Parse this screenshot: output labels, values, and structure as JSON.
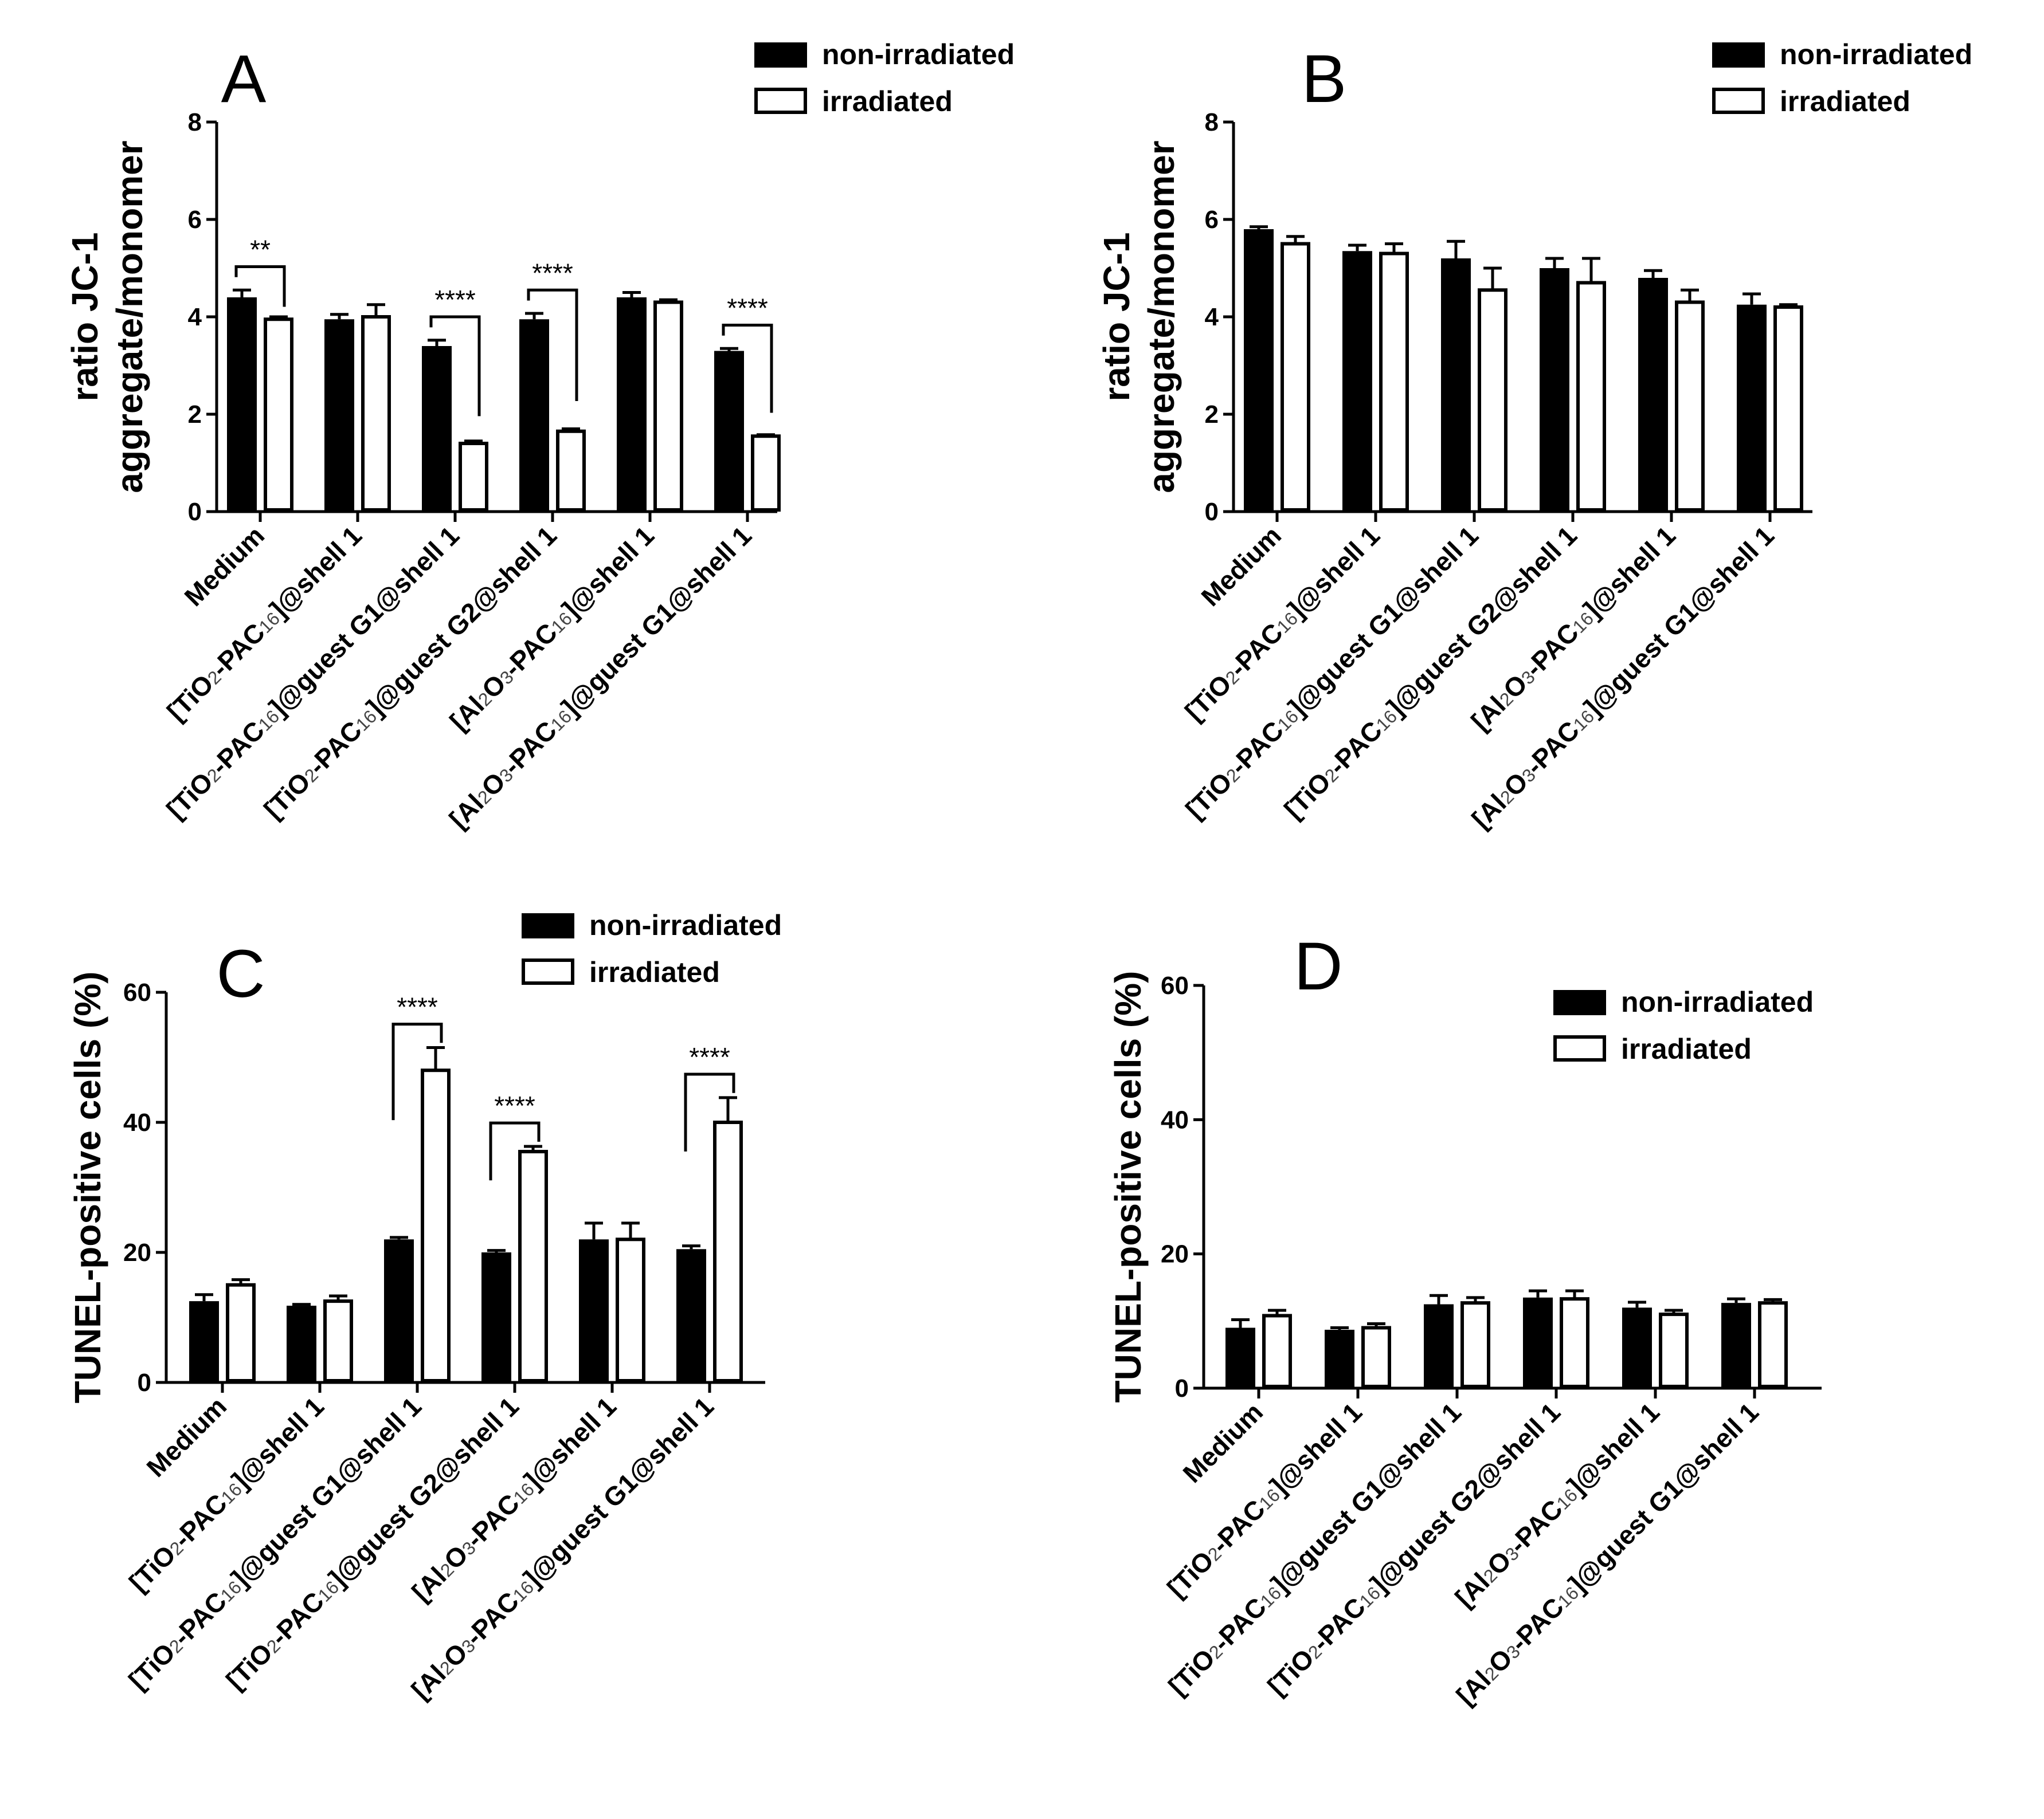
{
  "figure": {
    "legend": {
      "non_irradiated": "non-irradiated",
      "irradiated": "irradiated"
    },
    "categories": [
      {
        "pre": "Medium"
      },
      {
        "pre": "[TiO",
        "sub": "2",
        "mid": "-PAC",
        "sub2": "16",
        "post": "]@shell 1"
      },
      {
        "pre": "[TiO",
        "sub": "2",
        "mid": "-PAC",
        "sub2": "16",
        "post": "]@guest G1@shell 1"
      },
      {
        "pre": "[TiO",
        "sub": "2",
        "mid": "-PAC",
        "sub2": "16",
        "post": "]@guest G2@shell 1"
      },
      {
        "pre": "[Al",
        "sub": "2",
        "mid": "O",
        "sub3": "3",
        "mid2": "-PAC",
        "sub2": "16",
        "post": "]@shell 1"
      },
      {
        "pre": "[Al",
        "sub": "2",
        "mid": "O",
        "sub3": "3",
        "mid2": "-PAC",
        "sub2": "16",
        "post": "]@guest G1@shell 1"
      }
    ]
  },
  "chart_data": [
    {
      "panel": "A",
      "type": "bar",
      "ylabel_line1": "ratio JC-1",
      "ylabel_line2": "aggregate/monomer",
      "ylim": [
        0,
        8
      ],
      "yticks": [
        0,
        2,
        4,
        6,
        8
      ],
      "series": [
        {
          "name": "non-irradiated",
          "values": [
            4.4,
            3.95,
            3.4,
            3.95,
            4.4,
            3.3
          ],
          "errors": [
            0.15,
            0.1,
            0.12,
            0.12,
            0.1,
            0.05
          ]
        },
        {
          "name": "irradiated",
          "values": [
            3.95,
            4.0,
            1.4,
            1.65,
            4.3,
            1.55
          ],
          "errors": [
            0.05,
            0.25,
            0.05,
            0.05,
            0.05,
            0.03
          ]
        }
      ],
      "significance": [
        {
          "category": 0,
          "label": "**"
        },
        {
          "category": 2,
          "label": "****"
        },
        {
          "category": 3,
          "label": "****"
        },
        {
          "category": 5,
          "label": "****"
        }
      ]
    },
    {
      "panel": "B",
      "type": "bar",
      "ylabel_line1": "ratio JC-1",
      "ylabel_line2": "aggregate/monomer",
      "ylim": [
        0,
        8
      ],
      "yticks": [
        0,
        2,
        4,
        6,
        8
      ],
      "series": [
        {
          "name": "non-irradiated",
          "values": [
            5.8,
            5.35,
            5.2,
            5.0,
            4.8,
            4.25
          ],
          "errors": [
            0.05,
            0.12,
            0.35,
            0.2,
            0.15,
            0.22
          ]
        },
        {
          "name": "irradiated",
          "values": [
            5.5,
            5.3,
            4.55,
            4.7,
            4.3,
            4.2
          ],
          "errors": [
            0.15,
            0.2,
            0.45,
            0.5,
            0.25,
            0.05
          ]
        }
      ],
      "significance": []
    },
    {
      "panel": "C",
      "type": "bar",
      "ylabel_line1": "TUNEL-positive cells (%)",
      "ylim": [
        0,
        60
      ],
      "yticks": [
        0,
        20,
        40,
        60
      ],
      "series": [
        {
          "name": "non-irradiated",
          "values": [
            12.5,
            11.8,
            22.0,
            20.0,
            22.0,
            20.5
          ],
          "errors": [
            1.0,
            0.2,
            0.3,
            0.3,
            2.5,
            0.5
          ]
        },
        {
          "name": "irradiated",
          "values": [
            15.0,
            12.5,
            48.0,
            35.5,
            22.0,
            40.0
          ],
          "errors": [
            0.8,
            0.8,
            3.5,
            0.8,
            2.5,
            3.8
          ]
        }
      ],
      "significance": [
        {
          "category": 2,
          "label": "****"
        },
        {
          "category": 3,
          "label": "****"
        },
        {
          "category": 5,
          "label": "****"
        }
      ]
    },
    {
      "panel": "D",
      "type": "bar",
      "ylabel_line1": "TUNEL-positive cells (%)",
      "ylim": [
        0,
        60
      ],
      "yticks": [
        0,
        20,
        40,
        60
      ],
      "series": [
        {
          "name": "non-irradiated",
          "values": [
            9.0,
            8.7,
            12.5,
            13.5,
            12.0,
            12.7
          ],
          "errors": [
            1.2,
            0.3,
            1.3,
            1.0,
            0.8,
            0.6
          ]
        },
        {
          "name": "irradiated",
          "values": [
            10.8,
            9.0,
            12.7,
            13.3,
            11.0,
            12.7
          ],
          "errors": [
            0.8,
            0.6,
            0.8,
            1.2,
            0.6,
            0.5
          ]
        }
      ],
      "significance": []
    }
  ]
}
